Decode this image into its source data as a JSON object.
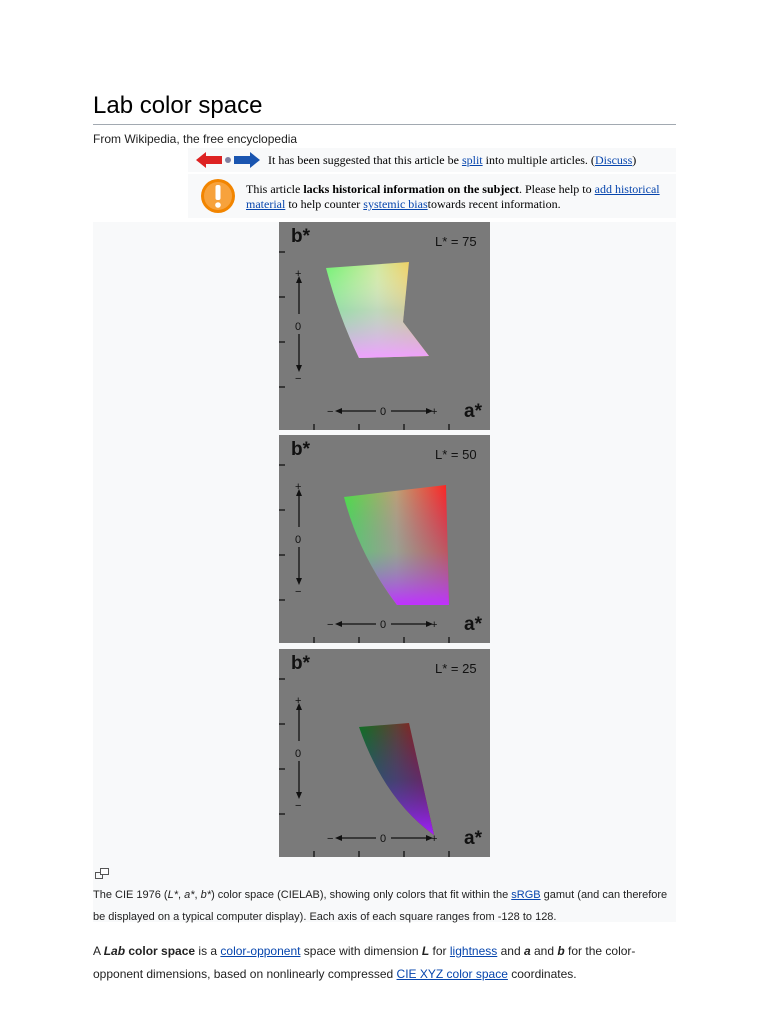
{
  "page": {
    "title": "Lab color space",
    "tagline": "From Wikipedia, the free encyclopedia"
  },
  "notices": {
    "split": {
      "before": "It has been suggested that this article be ",
      "link_split": "split",
      "middle": " into multiple articles. (",
      "link_discuss": "Discuss",
      "after": ")"
    },
    "historical": {
      "before": "This article ",
      "bold": "lacks historical information on the subject",
      "middle1": ". Please help to ",
      "link_add": "add historical material",
      "middle2": " to help counter ",
      "link_bias": "systemic bias",
      "after": "towards recent information."
    }
  },
  "figure": {
    "panels": [
      {
        "l_label": "L* = 75",
        "x_axis": "a*",
        "y_axis": "b*"
      },
      {
        "l_label": "L* = 50",
        "x_axis": "a*",
        "y_axis": "b*"
      },
      {
        "l_label": "L* = 25",
        "x_axis": "a*",
        "y_axis": "b*"
      }
    ],
    "axis_marks": {
      "plus": "+",
      "zero": "0",
      "minus": "−"
    },
    "caption": {
      "p1": "The CIE 1976 (",
      "L": "L*",
      "c1": ", ",
      "a": "a*",
      "c2": ", ",
      "b": "b*",
      "p2": ") color space (CIELAB), showing only colors that fit within the ",
      "link_srgb": "sRGB",
      "p3": " gamut (and can therefore be displayed on a typical computer display). Each axis of each square ranges from -128 to 128."
    }
  },
  "lead": {
    "p1": "A ",
    "lab": "Lab",
    "p2": " color space",
    "p3": " is a ",
    "link_opponent": "color-opponent",
    "p4": " space with dimension ",
    "L": "L",
    "p5": " for ",
    "link_lightness": "lightness",
    "p6": " and ",
    "a": "a",
    "p7": " and ",
    "b": "b",
    "p8": " for the color-opponent dimensions, based on nonlinearly compressed ",
    "link_xyz": "CIE XYZ color space",
    "p9": " coordinates."
  }
}
